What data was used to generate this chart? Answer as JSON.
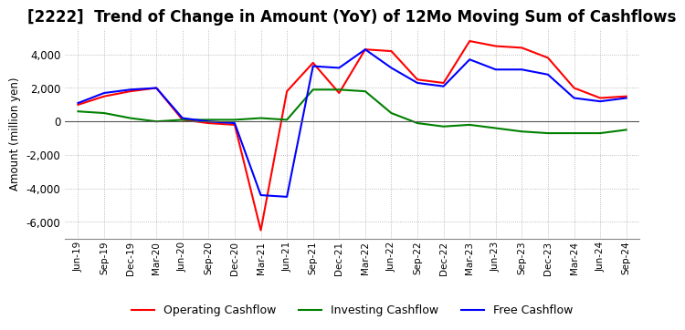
{
  "title": "[2222]  Trend of Change in Amount (YoY) of 12Mo Moving Sum of Cashflows",
  "ylabel": "Amount (million yen)",
  "x_labels": [
    "Jun-19",
    "Sep-19",
    "Dec-19",
    "Mar-20",
    "Jun-20",
    "Sep-20",
    "Dec-20",
    "Mar-21",
    "Jun-21",
    "Sep-21",
    "Dec-21",
    "Mar-22",
    "Jun-22",
    "Sep-22",
    "Dec-22",
    "Mar-23",
    "Jun-23",
    "Sep-23",
    "Dec-23",
    "Mar-24",
    "Jun-24",
    "Sep-24"
  ],
  "operating": [
    1000,
    1500,
    1800,
    2000,
    100,
    -100,
    -200,
    -6500,
    1800,
    3500,
    1700,
    4300,
    4200,
    2500,
    2300,
    4800,
    4500,
    4400,
    3800,
    2000,
    1400,
    1500
  ],
  "investing": [
    600,
    500,
    200,
    0,
    100,
    100,
    100,
    200,
    100,
    1900,
    1900,
    1800,
    500,
    -100,
    -300,
    -200,
    -400,
    -600,
    -700,
    -700,
    -700,
    -500
  ],
  "free": [
    1100,
    1700,
    1900,
    2000,
    200,
    0,
    -100,
    -4400,
    -4500,
    3300,
    3200,
    4300,
    3200,
    2300,
    2100,
    3700,
    3100,
    3100,
    2800,
    1400,
    1200,
    1400
  ],
  "operating_color": "#ff0000",
  "investing_color": "#008000",
  "free_color": "#0000ff",
  "ylim": [
    -7000,
    5500
  ],
  "yticks": [
    -6000,
    -4000,
    -2000,
    0,
    2000,
    4000
  ],
  "background_color": "#ffffff",
  "title_fontsize": 12,
  "legend_labels": [
    "Operating Cashflow",
    "Investing Cashflow",
    "Free Cashflow"
  ]
}
